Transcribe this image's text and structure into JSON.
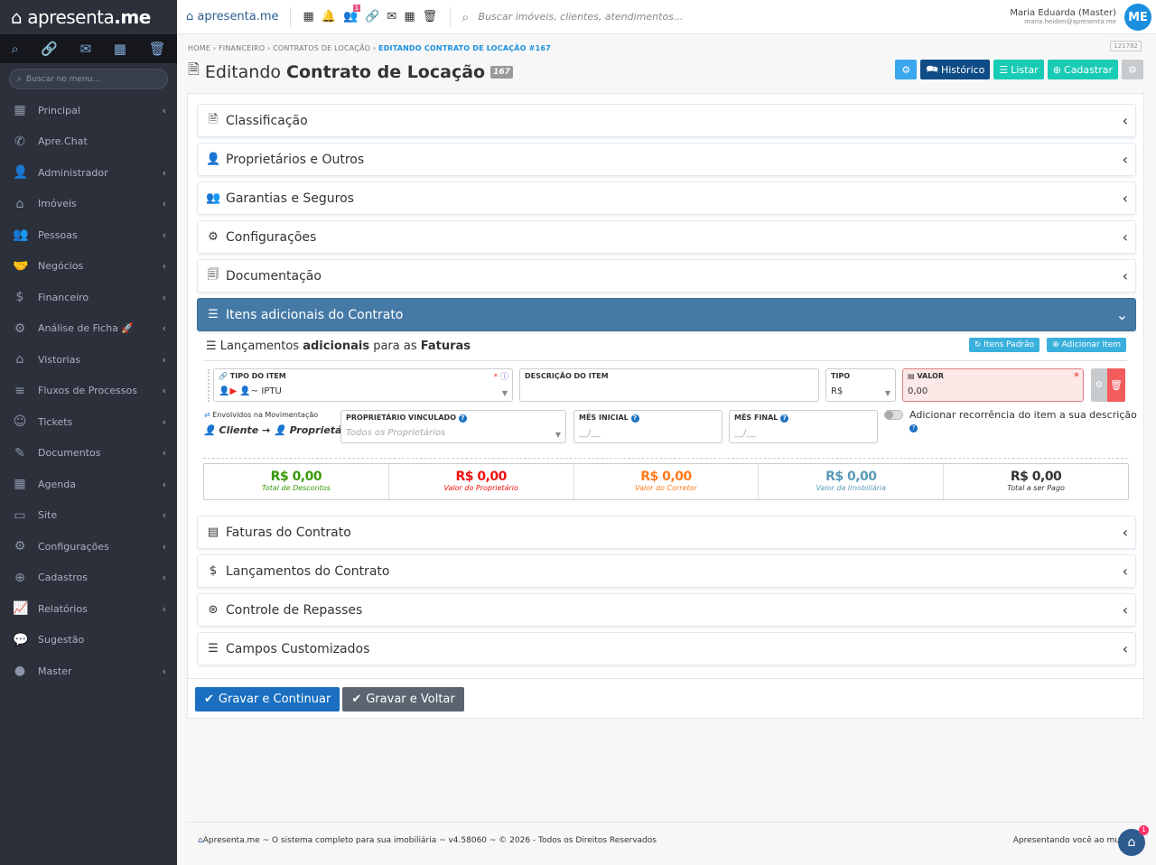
{
  "sidebar": {
    "logo_light": "apresenta",
    "logo_bold": ".me",
    "search_placeholder": "Buscar no menu...",
    "tools": [
      "search-icon",
      "link-icon",
      "mail-icon",
      "calendar-icon",
      "trash-icon"
    ],
    "items": [
      {
        "label": "Principal",
        "icon": "▦",
        "chev": true
      },
      {
        "label": "Apre.Chat",
        "icon": "✆",
        "chev": false
      },
      {
        "label": "Administrador",
        "icon": "👤",
        "chev": true
      },
      {
        "label": "Imóveis",
        "icon": "⌂",
        "chev": true
      },
      {
        "label": "Pessoas",
        "icon": "👥",
        "chev": true
      },
      {
        "label": "Negócios",
        "icon": "🤝",
        "chev": true
      },
      {
        "label": "Financeiro",
        "icon": "$",
        "chev": true
      },
      {
        "label": "Análise de Ficha 🚀",
        "icon": "⚙",
        "chev": true
      },
      {
        "label": "Vistorias",
        "icon": "⌂",
        "chev": true
      },
      {
        "label": "Fluxos de Processos",
        "icon": "≡",
        "chev": true
      },
      {
        "label": "Tickets",
        "icon": "☺",
        "chev": true
      },
      {
        "label": "Documentos",
        "icon": "✎",
        "chev": true
      },
      {
        "label": "Agenda",
        "icon": "▦",
        "chev": true
      },
      {
        "label": "Site",
        "icon": "▭",
        "chev": true
      },
      {
        "label": "Configurações",
        "icon": "⚙",
        "chev": true
      },
      {
        "label": "Cadastros",
        "icon": "⊕",
        "chev": true
      },
      {
        "label": "Relatórios",
        "icon": "📈",
        "chev": true
      },
      {
        "label": "Sugestão",
        "icon": "💬",
        "chev": false
      },
      {
        "label": "Master",
        "icon": "●",
        "chev": true
      }
    ]
  },
  "topbar": {
    "logo": "apresenta.me",
    "notification_count": "1",
    "search_placeholder": "Buscar imóveis, clientes, atendimentos...",
    "user_name": "Maria Eduarda (Master)",
    "user_email": "maria.heiden@apresenta.me",
    "avatar": "ME"
  },
  "breadcrumb": [
    "HOME",
    "FINANCEIRO",
    "CONTRATOS DE LOCAÇÃO",
    "EDITANDO CONTRATO DE LOCAÇÃO #167"
  ],
  "page": {
    "title_light": "Editando",
    "title_bold": "Contrato de Locação",
    "badge": "167",
    "id_tag": "121782"
  },
  "actions": {
    "historico": "Histórico",
    "listar": "Listar",
    "cadastrar": "Cadastrar"
  },
  "accordions_top": [
    "Classificação",
    "Proprietários e Outros",
    "Garantias e Seguros",
    "Configurações",
    "Documentação",
    "Itens adicionais do Contrato"
  ],
  "accordions_bottom": [
    "Faturas do Contrato",
    "Lançamentos do Contrato",
    "Controle de Repasses",
    "Campos Customizados"
  ],
  "items_section": {
    "title_a": "Lançamentos ",
    "title_b": "adicionais",
    "title_c": " para as ",
    "title_d": "Faturas",
    "btn_padrao": "Itens Padrão",
    "btn_add": "Adicionar Item",
    "tipo_item_label": "TIPO DO ITEM",
    "tipo_item_value": "~ IPTU",
    "descricao_label": "DESCRIÇÃO DO ITEM",
    "tipo_label": "TIPO",
    "tipo_value": "R$",
    "valor_label": "VALOR",
    "valor_value": "0,00",
    "envolvidos_label": "Envolvidos na Movimentação",
    "envolvidos_from": "Cliente",
    "envolvidos_to": "Proprietário",
    "prop_label": "PROPRIETÁRIO VINCULADO",
    "prop_placeholder": "Todos os Proprietários",
    "mes_inicial_label": "MÊS INICIAL",
    "mes_final_label": "MÊS FINAL",
    "mes_placeholder": "__/__",
    "recorrencia_label": "Adicionar recorrência do item a sua descrição",
    "recorrencia_on": false
  },
  "totals": [
    {
      "value": "R$ 0,00",
      "label": "Total de Descontos",
      "color": "#3a9a0a"
    },
    {
      "value": "R$ 0,00",
      "label": "Valor do Proprietário",
      "color": "#ee1111"
    },
    {
      "value": "R$ 0,00",
      "label": "Valor do Corretor",
      "color": "#ff7a1a"
    },
    {
      "value": "R$ 0,00",
      "label": "Valor da Imobiliária",
      "color": "#5a9ab8"
    },
    {
      "value": "R$ 0,00",
      "label": "Total a ser Pago",
      "color": "#333333"
    }
  ],
  "buttons": {
    "gravar_continuar": "Gravar e Continuar",
    "gravar_voltar": "Gravar e Voltar"
  },
  "footer": {
    "left": "Apresenta.me ~ O sistema completo para sua imobiliária ~ v4.58060 ~ © 2026 - Todos os Direitos Reservados",
    "right": "Apresentando você ao mu",
    "chat_count": "1"
  }
}
